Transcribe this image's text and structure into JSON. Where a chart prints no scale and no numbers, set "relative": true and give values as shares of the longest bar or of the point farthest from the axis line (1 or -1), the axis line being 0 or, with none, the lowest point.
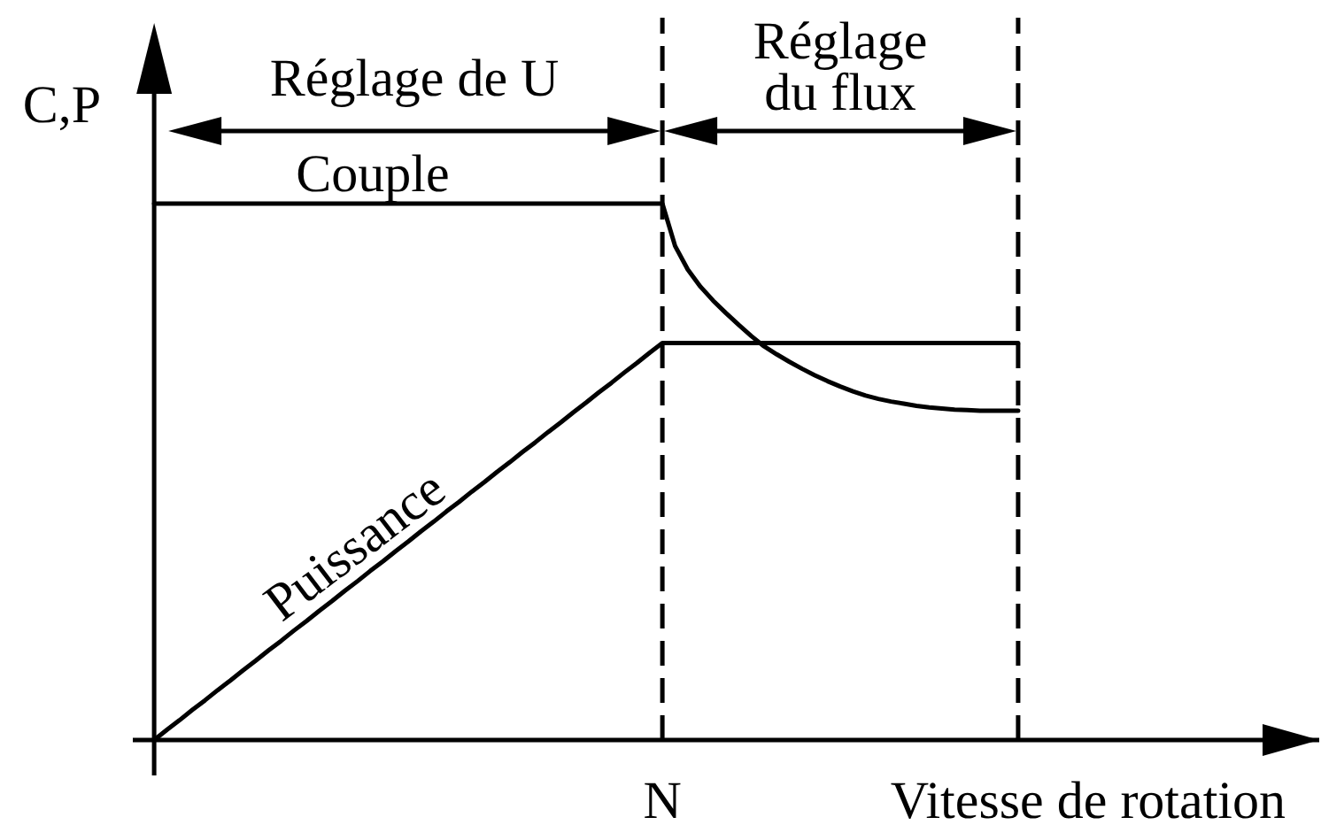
{
  "chart_data": {
    "type": "line",
    "relative": true,
    "xlabel": "Vitesse de rotation",
    "ylabel": "C,P",
    "annotations": [
      "Réglage de U",
      "Réglage du flux",
      "N"
    ],
    "categories": [
      null,
      null,
      null,
      null,
      null,
      null,
      null,
      null,
      null,
      null,
      null,
      null,
      null,
      null,
      null,
      null,
      null,
      null,
      null,
      null,
      null,
      null,
      null,
      null,
      null,
      null,
      null,
      null,
      null,
      null,
      null,
      null,
      null,
      null,
      null,
      null,
      null,
      null,
      null,
      null,
      null,
      null,
      null,
      null,
      null,
      null,
      null,
      null,
      null,
      null,
      null,
      null,
      null,
      null,
      null,
      null,
      null,
      null,
      null,
      null,
      null,
      null,
      null,
      null,
      null,
      null,
      null,
      null,
      null
    ],
    "series": [
      {
        "name": "Couple",
        "color": "#000000",
        "values": [
          1,
          1,
          1,
          1,
          1,
          1,
          1,
          1,
          1,
          1,
          1,
          1,
          1,
          1,
          1,
          1,
          1,
          1,
          1,
          1,
          1,
          1,
          1,
          1,
          1,
          1,
          1,
          1,
          1,
          1,
          1,
          1,
          1,
          1,
          1,
          1,
          1,
          1,
          1,
          1,
          1,
          0.921,
          0.877,
          0.845,
          0.819,
          0.796,
          0.774,
          0.753,
          0.734,
          0.719,
          0.705,
          0.692,
          0.68,
          0.669,
          0.659,
          0.65,
          0.642,
          0.636,
          0.631,
          0.627,
          0.623,
          0.62,
          0.618,
          0.616,
          0.615,
          0.614,
          0.614,
          0.614,
          0.614
        ]
      },
      {
        "name": "Puissance",
        "color": "#000000",
        "values": [
          0,
          0.019,
          0.037,
          0.056,
          0.074,
          0.093,
          0.111,
          0.13,
          0.148,
          0.167,
          0.185,
          0.204,
          0.222,
          0.241,
          0.259,
          0.278,
          0.296,
          0.315,
          0.333,
          0.352,
          0.37,
          0.389,
          0.407,
          0.426,
          0.444,
          0.463,
          0.481,
          0.5,
          0.518,
          0.537,
          0.555,
          0.574,
          0.592,
          0.611,
          0.629,
          0.648,
          0.666,
          0.685,
          0.703,
          0.722,
          0.74,
          0.74,
          0.74,
          0.74,
          0.74,
          0.74,
          0.74,
          0.74,
          0.74,
          0.74,
          0.74,
          0.74,
          0.74,
          0.74,
          0.74,
          0.74,
          0.74,
          0.74,
          0.74,
          0.74,
          0.74,
          0.74,
          0.74,
          0.74,
          0.74,
          0.74,
          0.74,
          0.74,
          0.74
        ]
      }
    ],
    "grid": false,
    "legend": false,
    "marker": "none",
    "line_style": "solid"
  }
}
